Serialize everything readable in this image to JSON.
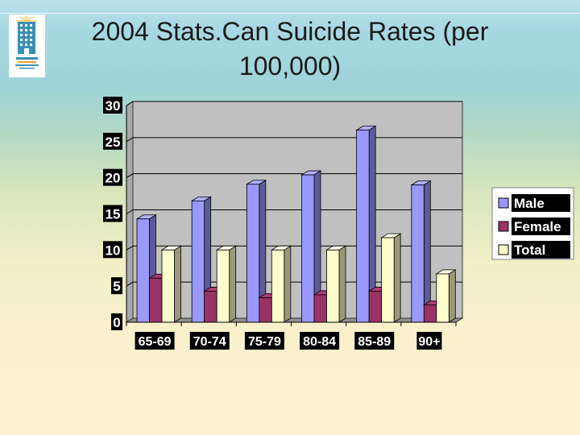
{
  "slide": {
    "title_line1": "2004 Stats.Can Suicide Rates (per",
    "title_line2": "100,000)",
    "logo_icon": "building-logo-icon"
  },
  "chart_data": {
    "type": "bar",
    "title": "2004 Stats.Can Suicide Rates (per 100,000)",
    "categories": [
      "65-69",
      "70-74",
      "75-79",
      "80-84",
      "85-89",
      "90+"
    ],
    "series": [
      {
        "name": "Male",
        "values": [
          14.3,
          16.8,
          19.1,
          20.4,
          26.6,
          19.0
        ],
        "color": "#9999ff"
      },
      {
        "name": "Female",
        "values": [
          6.1,
          4.3,
          3.4,
          3.8,
          4.3,
          2.4
        ],
        "color": "#993366"
      },
      {
        "name": "Total",
        "values": [
          10.0,
          10.0,
          10.0,
          10.0,
          11.7,
          6.7
        ],
        "color": "#ffffcc"
      }
    ],
    "yticks": [
      0,
      5,
      10,
      15,
      20,
      25,
      30
    ],
    "ylim": [
      0,
      30
    ],
    "xlabel": "",
    "ylabel": "",
    "grid": true,
    "legend": "right",
    "plot_background": "#c0c0c0"
  }
}
